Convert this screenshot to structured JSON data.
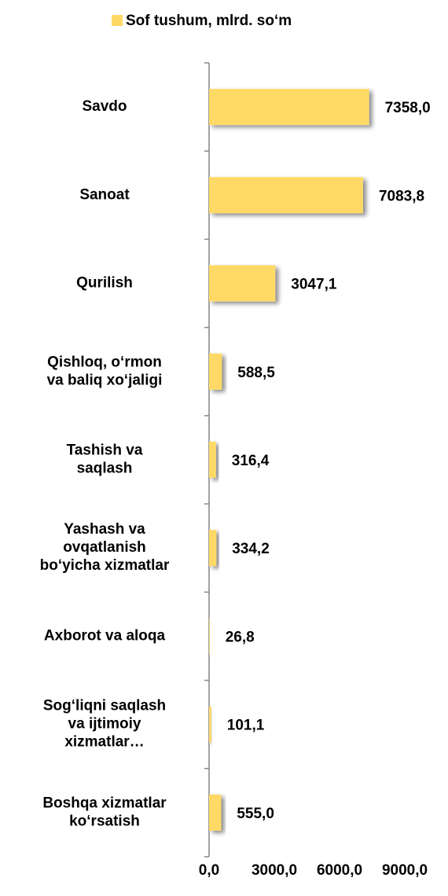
{
  "chart_data": {
    "type": "bar",
    "orientation": "horizontal",
    "legend_label": "Sof tushum, mlrd. so‘m",
    "categories": [
      [
        "Savdo"
      ],
      [
        "Sanoat"
      ],
      [
        "Qurilish"
      ],
      [
        "Qishloq, o‘rmon",
        "va baliq xo‘jaligi"
      ],
      [
        "Tashish va",
        "saqlash"
      ],
      [
        "Yashash va",
        "ovqatlanish",
        "bo‘yicha xizmatlar"
      ],
      [
        "Axborot va aloqa"
      ],
      [
        "Sog‘liqni saqlash",
        "va ijtimoiy",
        "xizmatlar…"
      ],
      [
        "Boshqa xizmatlar",
        "ko‘rsatish"
      ]
    ],
    "values": [
      7358.0,
      7083.8,
      3047.1,
      588.5,
      316.4,
      334.2,
      26.8,
      101.1,
      555.0
    ],
    "value_labels": [
      "7358,0",
      "7083,8",
      "3047,1",
      "588,5",
      "316,4",
      "334,2",
      "26,8",
      "101,1",
      "555,0"
    ],
    "color": "#ffd966",
    "xlim": [
      0,
      9000
    ],
    "xticks": [
      {
        "value": 0,
        "label": "0,0"
      },
      {
        "value": 3000,
        "label": "3000,0"
      },
      {
        "value": 6000,
        "label": "6000,0"
      },
      {
        "value": 9000,
        "label": "9000,0"
      }
    ]
  }
}
